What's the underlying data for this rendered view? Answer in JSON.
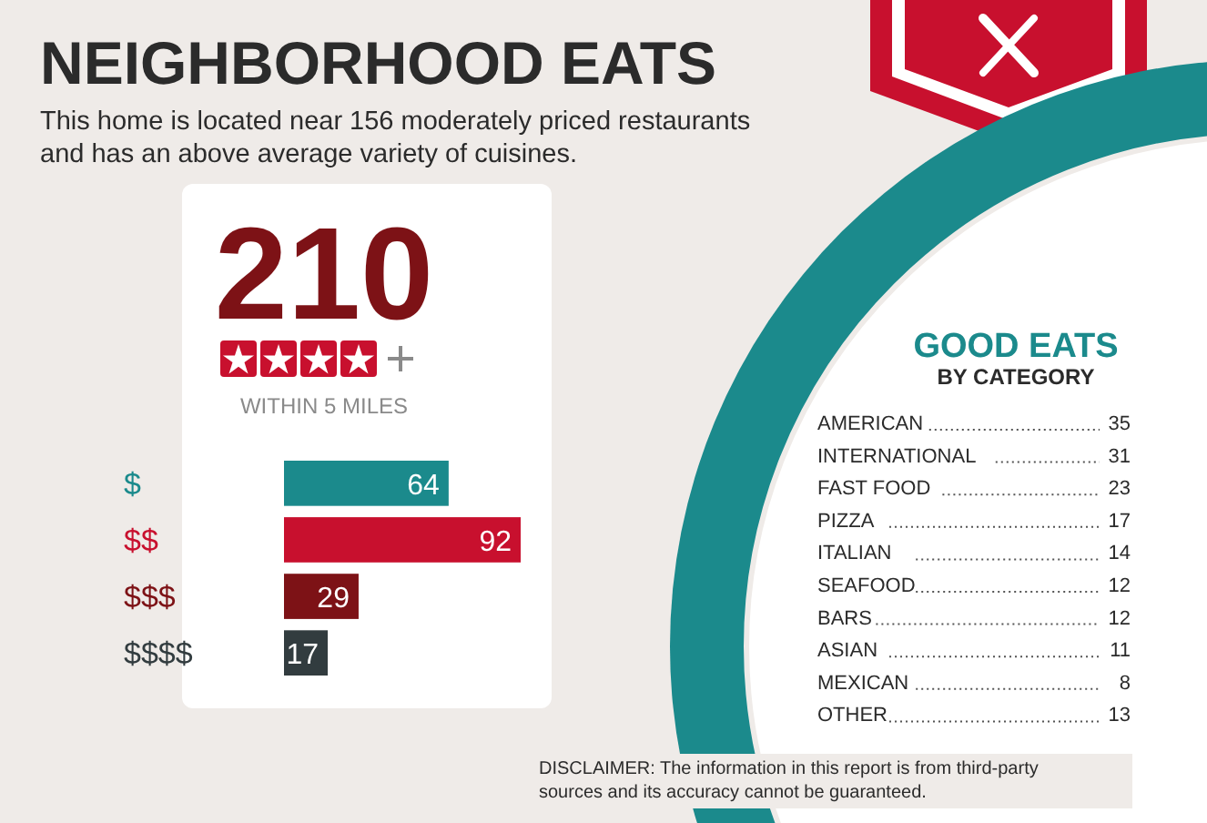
{
  "chart_data": [
    {
      "type": "bar",
      "orientation": "horizontal",
      "title": "NEIGHBORHOOD EATS",
      "subtitle": "This home is located near 156 moderately priced restaurants and has an above average variety of cuisines.",
      "categories": [
        "$",
        "$$",
        "$$$",
        "$$$$"
      ],
      "values": [
        64,
        92,
        29,
        17
      ],
      "colors": [
        "#1b8a8c",
        "#c8102e",
        "#7d1216",
        "#323c3f"
      ],
      "data_labels": true,
      "annotations": [
        "210",
        "WITHIN 5 MILES",
        "DISCLAIMER: The information in this report is from third-party sources and its accuracy cannot be guaranteed."
      ]
    },
    {
      "type": "other",
      "title": "GOOD EATS",
      "subtitle": "BY CATEGORY",
      "categories": [
        "AMERICAN",
        "INTERNATIONAL",
        "FAST FOOD",
        "PIZZA",
        "ITALIAN",
        "SEAFOOD",
        "BARS",
        "ASIAN",
        "MEXICAN",
        "OTHER"
      ],
      "values": [
        35,
        31,
        23,
        17,
        14,
        12,
        12,
        11,
        8,
        13
      ],
      "data_labels": true
    }
  ]
}
